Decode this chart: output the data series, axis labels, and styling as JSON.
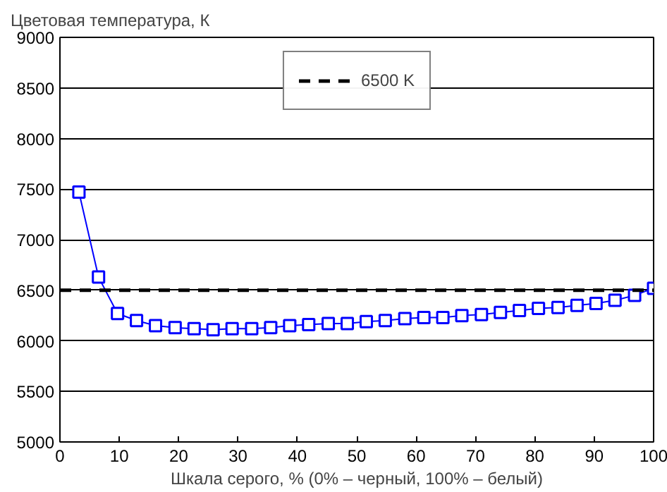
{
  "chart_data": {
    "type": "line",
    "ylabel": "Цветовая температура, К",
    "xlabel": "Шкала серого, % (0% – черный, 100% – белый)",
    "x": [
      3.2,
      6.5,
      9.7,
      12.9,
      16.1,
      19.4,
      22.6,
      25.8,
      29.0,
      32.3,
      35.5,
      38.7,
      41.9,
      45.2,
      48.4,
      51.6,
      54.8,
      58.1,
      61.3,
      64.5,
      67.7,
      71.0,
      74.2,
      77.4,
      80.6,
      83.9,
      87.1,
      90.3,
      93.5,
      96.8,
      100
    ],
    "series": [
      {
        "color": "#0000ff",
        "values": [
          7470,
          6630,
          6270,
          6200,
          6150,
          6130,
          6120,
          6110,
          6120,
          6120,
          6130,
          6150,
          6160,
          6170,
          6170,
          6190,
          6200,
          6220,
          6230,
          6230,
          6250,
          6260,
          6280,
          6300,
          6320,
          6330,
          6350,
          6370,
          6400,
          6450,
          6520
        ]
      }
    ],
    "xlim": [
      0,
      100
    ],
    "xticks": [
      0,
      10,
      20,
      30,
      40,
      50,
      60,
      70,
      80,
      90,
      100
    ],
    "ylim": [
      5000,
      9000
    ],
    "yticks": [
      5000,
      5500,
      6000,
      6500,
      7000,
      7500,
      8000,
      8500,
      9000
    ],
    "ref_lines": [
      {
        "axis": "y",
        "value": 6500,
        "label": "6500 K",
        "color": "#000000",
        "line_style": "dashed"
      }
    ],
    "grid": "y",
    "legend": "top",
    "marker": "square",
    "line_style": "solid"
  }
}
